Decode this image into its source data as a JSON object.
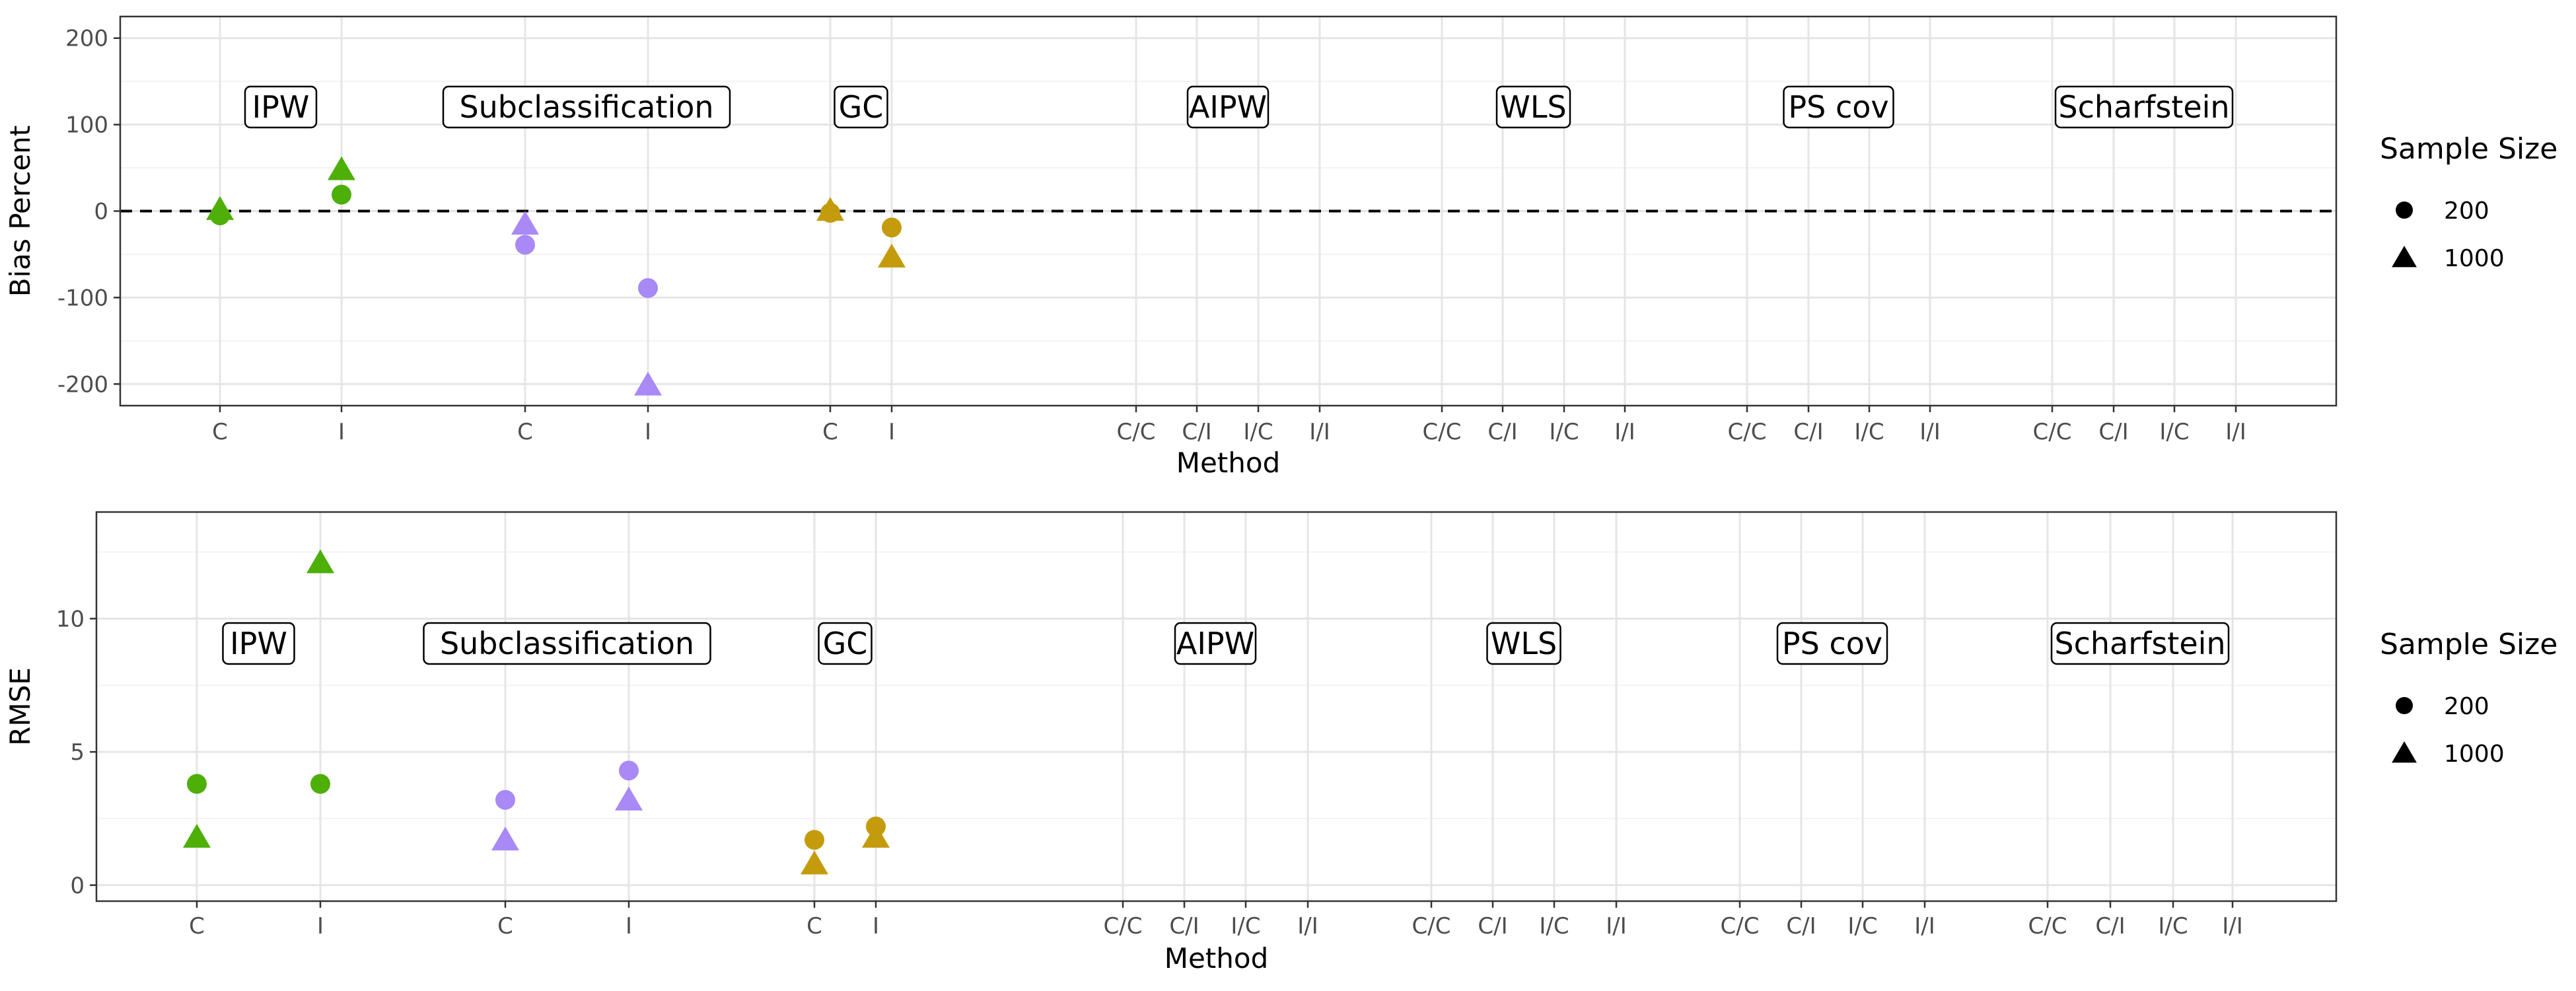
{
  "chart_data": [
    {
      "type": "scatter",
      "title": "",
      "xlabel": "Method",
      "ylabel": "Bias Percent",
      "ylim": [
        -225,
        225
      ],
      "yticks": [
        -200,
        -100,
        0,
        100,
        200
      ],
      "reference_line": 0,
      "grid": true,
      "legend": {
        "title": "Sample Size",
        "position": "right",
        "entries": [
          {
            "label": "200",
            "shape": "circle"
          },
          {
            "label": "1000",
            "shape": "triangle"
          }
        ]
      },
      "groups": [
        {
          "label": "IPW",
          "color": "#4daf08",
          "ticks": [
            "C",
            "I"
          ]
        },
        {
          "label": "Subclassification",
          "color": "#a889f5",
          "ticks": [
            "C",
            "I"
          ]
        },
        {
          "label": "GC",
          "color": "#c49b0c",
          "ticks": [
            "C",
            "I"
          ]
        },
        {
          "label": "AIPW",
          "color": "#000000",
          "ticks": [
            "C/C",
            "C/I",
            "I/C",
            "I/I"
          ]
        },
        {
          "label": "WLS",
          "color": "#000000",
          "ticks": [
            "C/C",
            "C/I",
            "I/C",
            "I/I"
          ]
        },
        {
          "label": "PS cov",
          "color": "#000000",
          "ticks": [
            "C/C",
            "C/I",
            "I/C",
            "I/I"
          ]
        },
        {
          "label": "Scharfstein",
          "color": "#000000",
          "ticks": [
            "C/C",
            "C/I",
            "I/C",
            "I/I"
          ]
        }
      ],
      "points": [
        {
          "group": 0,
          "tick": 0,
          "size": "200",
          "y": -5
        },
        {
          "group": 0,
          "tick": 0,
          "size": "1000",
          "y": 2
        },
        {
          "group": 0,
          "tick": 1,
          "size": "200",
          "y": 19
        },
        {
          "group": 0,
          "tick": 1,
          "size": "1000",
          "y": 48
        },
        {
          "group": 1,
          "tick": 0,
          "size": "200",
          "y": -39
        },
        {
          "group": 1,
          "tick": 0,
          "size": "1000",
          "y": -15
        },
        {
          "group": 1,
          "tick": 1,
          "size": "200",
          "y": -89
        },
        {
          "group": 1,
          "tick": 1,
          "size": "1000",
          "y": -201
        },
        {
          "group": 2,
          "tick": 0,
          "size": "200",
          "y": -2
        },
        {
          "group": 2,
          "tick": 0,
          "size": "1000",
          "y": 1
        },
        {
          "group": 2,
          "tick": 1,
          "size": "200",
          "y": -19
        },
        {
          "group": 2,
          "tick": 1,
          "size": "1000",
          "y": -53
        }
      ]
    },
    {
      "type": "scatter",
      "title": "",
      "xlabel": "Method",
      "ylabel": "RMSE",
      "ylim": [
        -0.6,
        14
      ],
      "yticks": [
        0,
        5,
        10
      ],
      "grid": true,
      "legend": {
        "title": "Sample Size",
        "position": "right",
        "entries": [
          {
            "label": "200",
            "shape": "circle"
          },
          {
            "label": "1000",
            "shape": "triangle"
          }
        ]
      },
      "groups": [
        {
          "label": "IPW",
          "color": "#4daf08",
          "ticks": [
            "C",
            "I"
          ]
        },
        {
          "label": "Subclassification",
          "color": "#a889f5",
          "ticks": [
            "C",
            "I"
          ]
        },
        {
          "label": "GC",
          "color": "#c49b0c",
          "ticks": [
            "C",
            "I"
          ]
        },
        {
          "label": "AIPW",
          "color": "#000000",
          "ticks": [
            "C/C",
            "C/I",
            "I/C",
            "I/I"
          ]
        },
        {
          "label": "WLS",
          "color": "#000000",
          "ticks": [
            "C/C",
            "C/I",
            "I/C",
            "I/I"
          ]
        },
        {
          "label": "PS cov",
          "color": "#000000",
          "ticks": [
            "C/C",
            "C/I",
            "I/C",
            "I/I"
          ]
        },
        {
          "label": "Scharfstein",
          "color": "#000000",
          "ticks": [
            "C/C",
            "C/I",
            "I/C",
            "I/I"
          ]
        }
      ],
      "points": [
        {
          "group": 0,
          "tick": 0,
          "size": "200",
          "y": 3.8
        },
        {
          "group": 0,
          "tick": 0,
          "size": "1000",
          "y": 1.8
        },
        {
          "group": 0,
          "tick": 1,
          "size": "200",
          "y": 3.8
        },
        {
          "group": 0,
          "tick": 1,
          "size": "1000",
          "y": 12.1
        },
        {
          "group": 1,
          "tick": 0,
          "size": "200",
          "y": 3.2
        },
        {
          "group": 1,
          "tick": 0,
          "size": "1000",
          "y": 1.7
        },
        {
          "group": 1,
          "tick": 1,
          "size": "200",
          "y": 4.3
        },
        {
          "group": 1,
          "tick": 1,
          "size": "1000",
          "y": 3.2
        },
        {
          "group": 2,
          "tick": 0,
          "size": "200",
          "y": 1.7
        },
        {
          "group": 2,
          "tick": 0,
          "size": "1000",
          "y": 0.8
        },
        {
          "group": 2,
          "tick": 1,
          "size": "200",
          "y": 2.2
        },
        {
          "group": 2,
          "tick": 1,
          "size": "1000",
          "y": 1.8
        }
      ]
    }
  ]
}
